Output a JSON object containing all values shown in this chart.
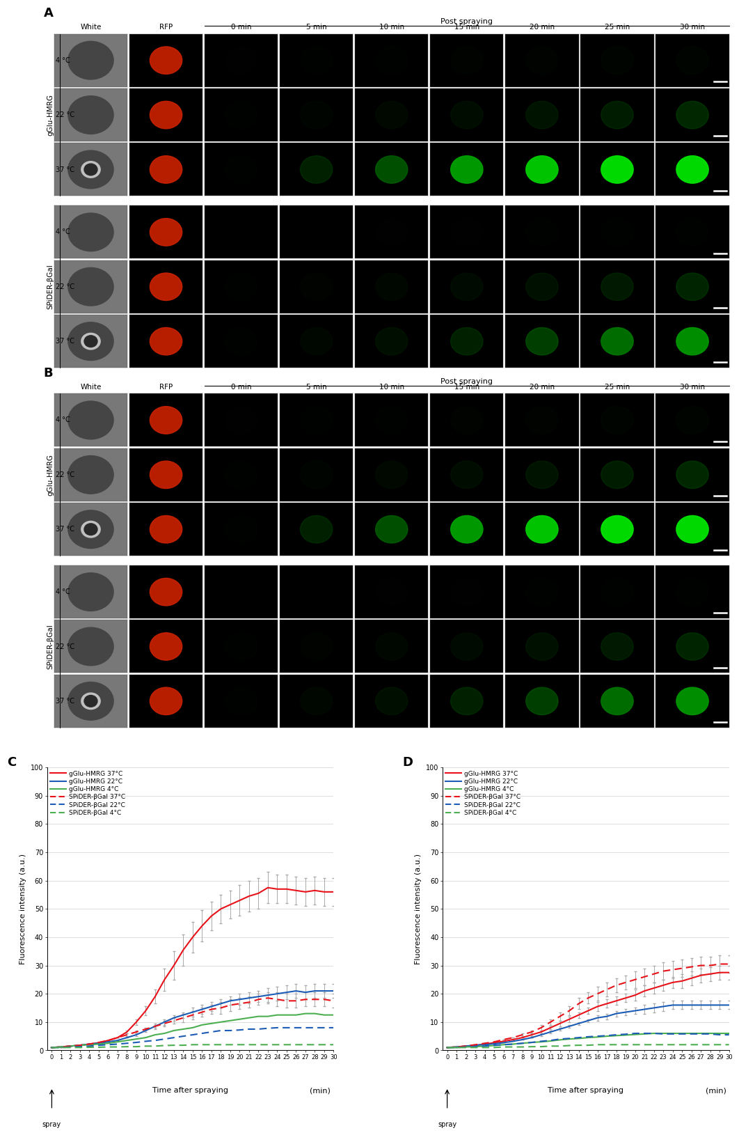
{
  "panel_A_label": "A",
  "panel_B_label": "B",
  "panel_C_label": "C",
  "panel_D_label": "D",
  "col_labels": [
    "White",
    "RFP",
    "0 min",
    "5 min",
    "10 min",
    "15 min",
    "20 min",
    "25 min",
    "30 min"
  ],
  "post_spraying_label": "Post spraying",
  "group_label_gGlu": "gGlu-HMRG",
  "group_label_spider": "SPiDER-βGal",
  "ylabel_C": "Fluorescence intensity (a.u.)",
  "xlabel_C": "Time after spraying",
  "xlabel_unit": "(min)",
  "spray_label": "spray",
  "x_ticks": [
    0,
    1,
    2,
    3,
    4,
    5,
    6,
    7,
    8,
    9,
    10,
    11,
    12,
    13,
    14,
    15,
    16,
    17,
    18,
    19,
    20,
    21,
    22,
    23,
    24,
    25,
    26,
    27,
    28,
    29,
    30
  ],
  "panel_C": {
    "gGlu_37": [
      1.0,
      1.2,
      1.5,
      1.8,
      2.2,
      2.7,
      3.5,
      4.5,
      6.5,
      10.0,
      14.0,
      19.0,
      25.0,
      30.0,
      35.5,
      40.0,
      44.0,
      47.5,
      50.0,
      51.5,
      53.0,
      54.5,
      55.5,
      57.5,
      57.0,
      57.0,
      56.5,
      56.0,
      56.5,
      56.0,
      56.0
    ],
    "gGlu_22": [
      1.0,
      1.2,
      1.5,
      1.8,
      2.2,
      2.5,
      3.0,
      3.5,
      4.5,
      5.5,
      7.0,
      8.5,
      10.0,
      11.5,
      12.5,
      13.5,
      14.5,
      15.5,
      16.5,
      17.5,
      18.0,
      18.5,
      19.0,
      19.5,
      20.0,
      20.5,
      21.0,
      20.5,
      21.0,
      21.0,
      21.0
    ],
    "gGlu_4": [
      1.0,
      1.2,
      1.5,
      1.8,
      2.0,
      2.2,
      2.5,
      3.0,
      3.5,
      4.0,
      4.5,
      5.5,
      6.0,
      7.0,
      7.5,
      8.0,
      9.0,
      9.5,
      10.0,
      10.5,
      11.0,
      11.5,
      12.0,
      12.0,
      12.5,
      12.5,
      12.5,
      13.0,
      13.0,
      12.5,
      12.5
    ],
    "spider_37": [
      1.0,
      1.2,
      1.5,
      1.8,
      2.2,
      2.8,
      3.5,
      4.5,
      5.5,
      6.5,
      7.5,
      8.5,
      9.5,
      10.5,
      11.5,
      12.5,
      13.5,
      14.5,
      15.0,
      16.0,
      16.5,
      17.0,
      18.0,
      18.5,
      18.0,
      17.5,
      17.5,
      18.0,
      18.0,
      18.0,
      17.5
    ],
    "spider_22": [
      1.0,
      1.0,
      1.2,
      1.3,
      1.5,
      1.8,
      2.0,
      2.2,
      2.5,
      2.8,
      3.2,
      3.5,
      4.0,
      4.5,
      5.0,
      5.5,
      6.0,
      6.5,
      7.0,
      7.0,
      7.2,
      7.5,
      7.5,
      7.8,
      8.0,
      8.0,
      8.0,
      8.0,
      8.0,
      8.0,
      8.0
    ],
    "spider_4": [
      1.0,
      1.0,
      1.0,
      1.0,
      1.1,
      1.1,
      1.2,
      1.2,
      1.3,
      1.3,
      1.5,
      1.5,
      1.7,
      1.8,
      1.8,
      2.0,
      2.0,
      2.0,
      2.0,
      2.0,
      2.0,
      2.0,
      2.0,
      2.0,
      2.0,
      2.0,
      2.0,
      2.0,
      2.0,
      2.0,
      2.0
    ],
    "gGlu_37_err": [
      0.0,
      0.0,
      0.0,
      0.0,
      0.0,
      0.0,
      0.0,
      0.0,
      0.5,
      1.0,
      1.5,
      2.5,
      4.0,
      5.0,
      5.5,
      5.5,
      5.5,
      5.0,
      5.0,
      5.0,
      5.5,
      5.5,
      5.5,
      5.5,
      5.0,
      5.0,
      5.0,
      5.0,
      5.0,
      5.0,
      5.0
    ],
    "gGlu_22_err": [
      0.0,
      0.0,
      0.0,
      0.0,
      0.0,
      0.0,
      0.0,
      0.0,
      0.0,
      0.5,
      0.5,
      0.5,
      1.0,
      1.0,
      1.0,
      1.5,
      1.5,
      1.5,
      1.5,
      1.5,
      2.0,
      2.0,
      2.0,
      2.5,
      2.5,
      2.5,
      2.5,
      2.5,
      2.5,
      2.5,
      2.5
    ],
    "spider_37_err": [
      0.0,
      0.0,
      0.0,
      0.0,
      0.0,
      0.0,
      0.0,
      0.0,
      0.5,
      0.5,
      0.5,
      1.0,
      1.0,
      1.0,
      1.5,
      1.5,
      1.5,
      1.5,
      2.0,
      2.0,
      2.0,
      2.0,
      2.0,
      2.0,
      2.5,
      2.5,
      2.5,
      2.5,
      2.5,
      2.5,
      2.5
    ]
  },
  "panel_D": {
    "gGlu_37": [
      1.0,
      1.2,
      1.5,
      1.8,
      2.2,
      2.7,
      3.2,
      3.8,
      4.5,
      5.5,
      6.5,
      8.0,
      9.5,
      11.0,
      12.5,
      14.0,
      15.5,
      16.5,
      17.5,
      18.5,
      19.5,
      21.0,
      22.0,
      23.0,
      24.0,
      24.5,
      25.5,
      26.5,
      27.0,
      27.5,
      27.5
    ],
    "gGlu_22": [
      1.0,
      1.2,
      1.5,
      1.8,
      2.0,
      2.3,
      2.7,
      3.2,
      3.8,
      4.5,
      5.5,
      6.5,
      7.5,
      8.5,
      9.5,
      10.5,
      11.5,
      12.0,
      13.0,
      13.5,
      14.0,
      14.5,
      15.0,
      15.5,
      16.0,
      16.0,
      16.0,
      16.0,
      16.0,
      16.0,
      16.0
    ],
    "gGlu_4": [
      1.0,
      1.0,
      1.2,
      1.3,
      1.5,
      1.7,
      2.0,
      2.2,
      2.5,
      2.8,
      3.0,
      3.3,
      3.7,
      4.0,
      4.2,
      4.5,
      4.7,
      5.0,
      5.2,
      5.4,
      5.6,
      5.8,
      6.0,
      6.0,
      6.0,
      6.0,
      6.0,
      6.0,
      6.0,
      6.0,
      6.0
    ],
    "spider_37": [
      1.0,
      1.2,
      1.5,
      2.0,
      2.5,
      3.0,
      3.8,
      4.5,
      5.5,
      6.5,
      8.0,
      10.0,
      12.0,
      14.0,
      16.5,
      18.5,
      20.0,
      21.5,
      23.0,
      24.0,
      25.0,
      26.0,
      27.0,
      28.0,
      28.5,
      29.0,
      29.5,
      30.0,
      30.0,
      30.5,
      30.5
    ],
    "spider_22": [
      1.0,
      1.0,
      1.2,
      1.3,
      1.5,
      1.8,
      2.0,
      2.2,
      2.5,
      2.8,
      3.2,
      3.5,
      4.0,
      4.2,
      4.5,
      4.8,
      5.0,
      5.2,
      5.5,
      5.7,
      6.0,
      6.0,
      6.0,
      5.8,
      5.8,
      5.8,
      5.8,
      5.8,
      5.8,
      5.5,
      5.5
    ],
    "spider_4": [
      1.0,
      1.0,
      1.0,
      1.0,
      1.0,
      1.0,
      1.2,
      1.2,
      1.2,
      1.3,
      1.3,
      1.5,
      1.5,
      1.7,
      1.8,
      1.8,
      2.0,
      2.0,
      2.0,
      2.0,
      2.0,
      2.0,
      2.0,
      2.0,
      2.0,
      2.0,
      2.0,
      2.0,
      2.0,
      2.0,
      2.0
    ],
    "spider_37_err": [
      0.0,
      0.0,
      0.0,
      0.0,
      0.0,
      0.0,
      0.0,
      0.0,
      0.5,
      0.5,
      1.0,
      1.0,
      1.5,
      1.5,
      2.0,
      2.0,
      2.5,
      2.5,
      2.5,
      2.5,
      3.0,
      3.0,
      3.0,
      3.0,
      3.0,
      3.0,
      3.0,
      3.0,
      3.0,
      3.0,
      3.0
    ],
    "gGlu_37_err": [
      0.0,
      0.0,
      0.0,
      0.0,
      0.0,
      0.0,
      0.0,
      0.0,
      0.0,
      0.5,
      0.5,
      0.5,
      1.0,
      1.0,
      1.0,
      1.0,
      1.5,
      1.5,
      1.5,
      1.5,
      2.0,
      2.0,
      2.0,
      2.0,
      2.0,
      2.5,
      2.5,
      2.5,
      2.5,
      2.5,
      2.5
    ],
    "gGlu_22_err": [
      0.0,
      0.0,
      0.0,
      0.0,
      0.0,
      0.0,
      0.0,
      0.0,
      0.0,
      0.0,
      0.5,
      0.5,
      0.5,
      0.5,
      0.5,
      0.5,
      1.0,
      1.0,
      1.0,
      1.0,
      1.0,
      1.5,
      1.5,
      1.5,
      1.5,
      1.5,
      1.5,
      1.5,
      1.5,
      1.5,
      1.5
    ]
  },
  "colors": {
    "red": "#E8121A",
    "blue": "#1C5CB5",
    "green": "#4CAF50"
  },
  "yticks": [
    0,
    10,
    20,
    30,
    40,
    50,
    60,
    70,
    80,
    90,
    100
  ],
  "fig_bg": "#ffffff"
}
